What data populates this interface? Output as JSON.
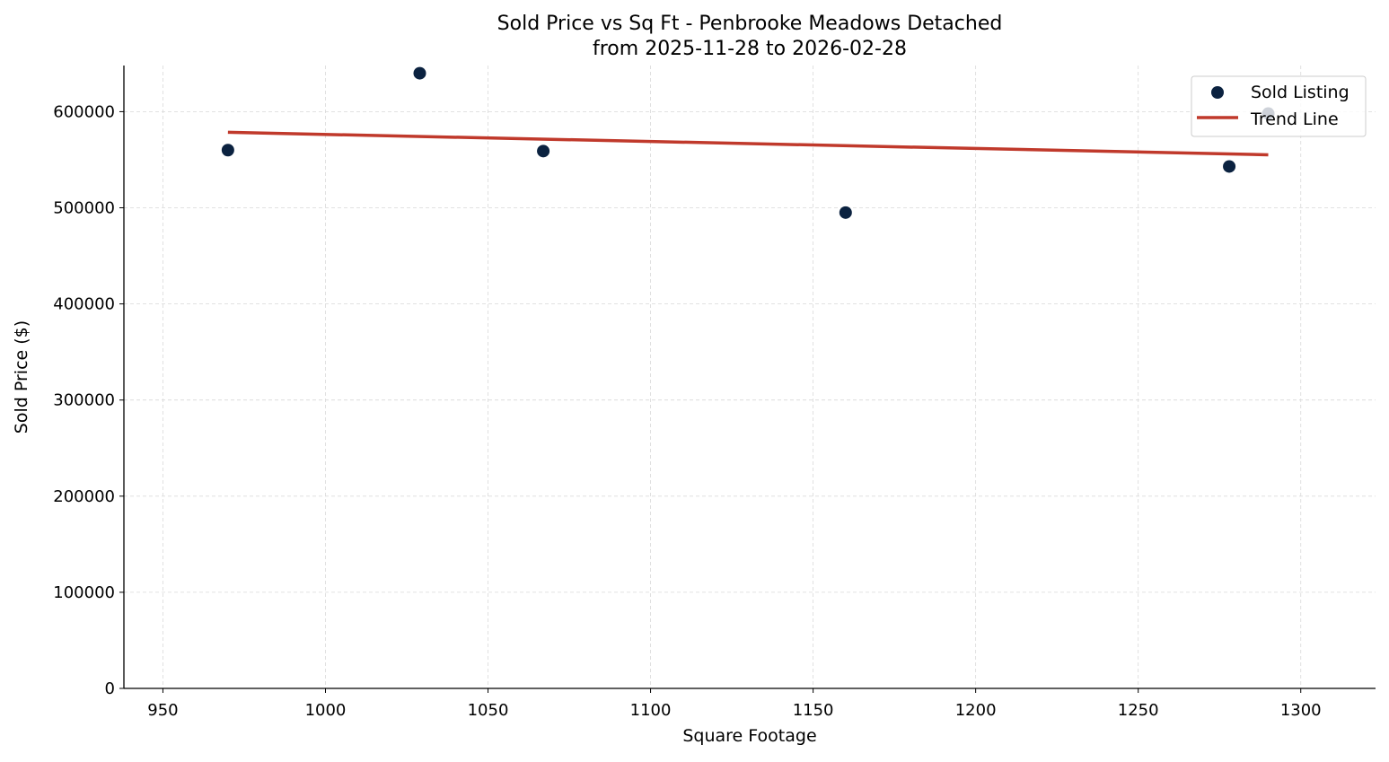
{
  "chart_data": {
    "type": "scatter",
    "title": "Sold Price vs Sq Ft - Penbrooke Meadows Detached",
    "subtitle": "from 2025-11-28 to 2026-02-28",
    "xlabel": "Square Footage",
    "ylabel": "Sold Price ($)",
    "xlim": [
      938,
      1323
    ],
    "ylim": [
      0,
      648000
    ],
    "xticks": [
      950,
      1000,
      1050,
      1100,
      1150,
      1200,
      1250,
      1300
    ],
    "yticks": [
      0,
      100000,
      200000,
      300000,
      400000,
      500000,
      600000
    ],
    "grid": true,
    "legend_position": "top-right",
    "series": [
      {
        "name": "Sold Listing",
        "type": "scatter",
        "color": "#0b2240",
        "points": [
          {
            "x": 970,
            "y": 560000
          },
          {
            "x": 1029,
            "y": 640000
          },
          {
            "x": 1067,
            "y": 559000
          },
          {
            "x": 1160,
            "y": 495000
          },
          {
            "x": 1278,
            "y": 543000
          },
          {
            "x": 1290,
            "y": 598000
          }
        ]
      },
      {
        "name": "Trend Line",
        "type": "line",
        "color": "#c0392b",
        "points": [
          {
            "x": 970,
            "y": 578500
          },
          {
            "x": 1290,
            "y": 555100
          }
        ]
      }
    ]
  }
}
